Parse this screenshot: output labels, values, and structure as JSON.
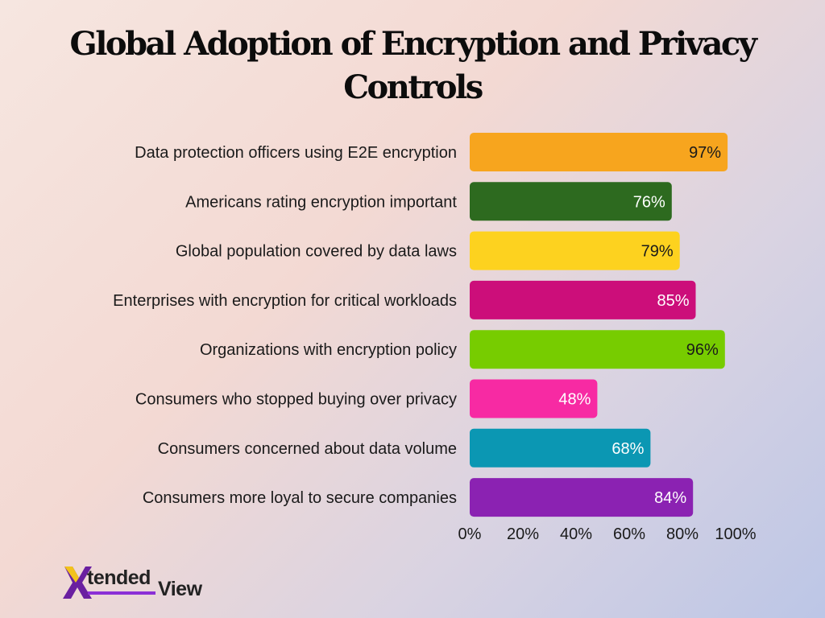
{
  "title_lines": [
    "Global Adoption of Encryption and Privacy",
    "Controls"
  ],
  "logo": {
    "word1": "tended",
    "word2": "View",
    "mark": "X"
  },
  "chart_data": {
    "type": "bar",
    "orientation": "horizontal",
    "categories": [
      "Data protection officers using E2E encryption",
      "Americans rating encryption important",
      "Global population covered by data laws",
      "Enterprises with encryption for critical workloads",
      "Organizations with encryption policy",
      "Consumers who stopped buying over privacy",
      "Consumers concerned about data volume",
      "Consumers more loyal to secure companies"
    ],
    "values": [
      97,
      76,
      79,
      85,
      96,
      48,
      68,
      84
    ],
    "value_labels": [
      "97%",
      "76%",
      "79%",
      "85%",
      "96%",
      "48%",
      "68%",
      "84%"
    ],
    "colors": [
      "#f7a51e",
      "#2d6a1f",
      "#fdd21f",
      "#cc0e7a",
      "#77cc00",
      "#f72aa3",
      "#0b97b3",
      "#8b22b2"
    ],
    "label_colors": [
      "#1a1a1a",
      "#ffffff",
      "#1a1a1a",
      "#ffffff",
      "#1a1a1a",
      "#ffffff",
      "#ffffff",
      "#ffffff"
    ],
    "xlim": [
      0,
      100
    ],
    "x_ticks": [
      0,
      20,
      40,
      60,
      80,
      100
    ],
    "x_tick_labels": [
      "0%",
      "20%",
      "40%",
      "60%",
      "80%",
      "100%"
    ],
    "grid": false,
    "legend": "none"
  }
}
